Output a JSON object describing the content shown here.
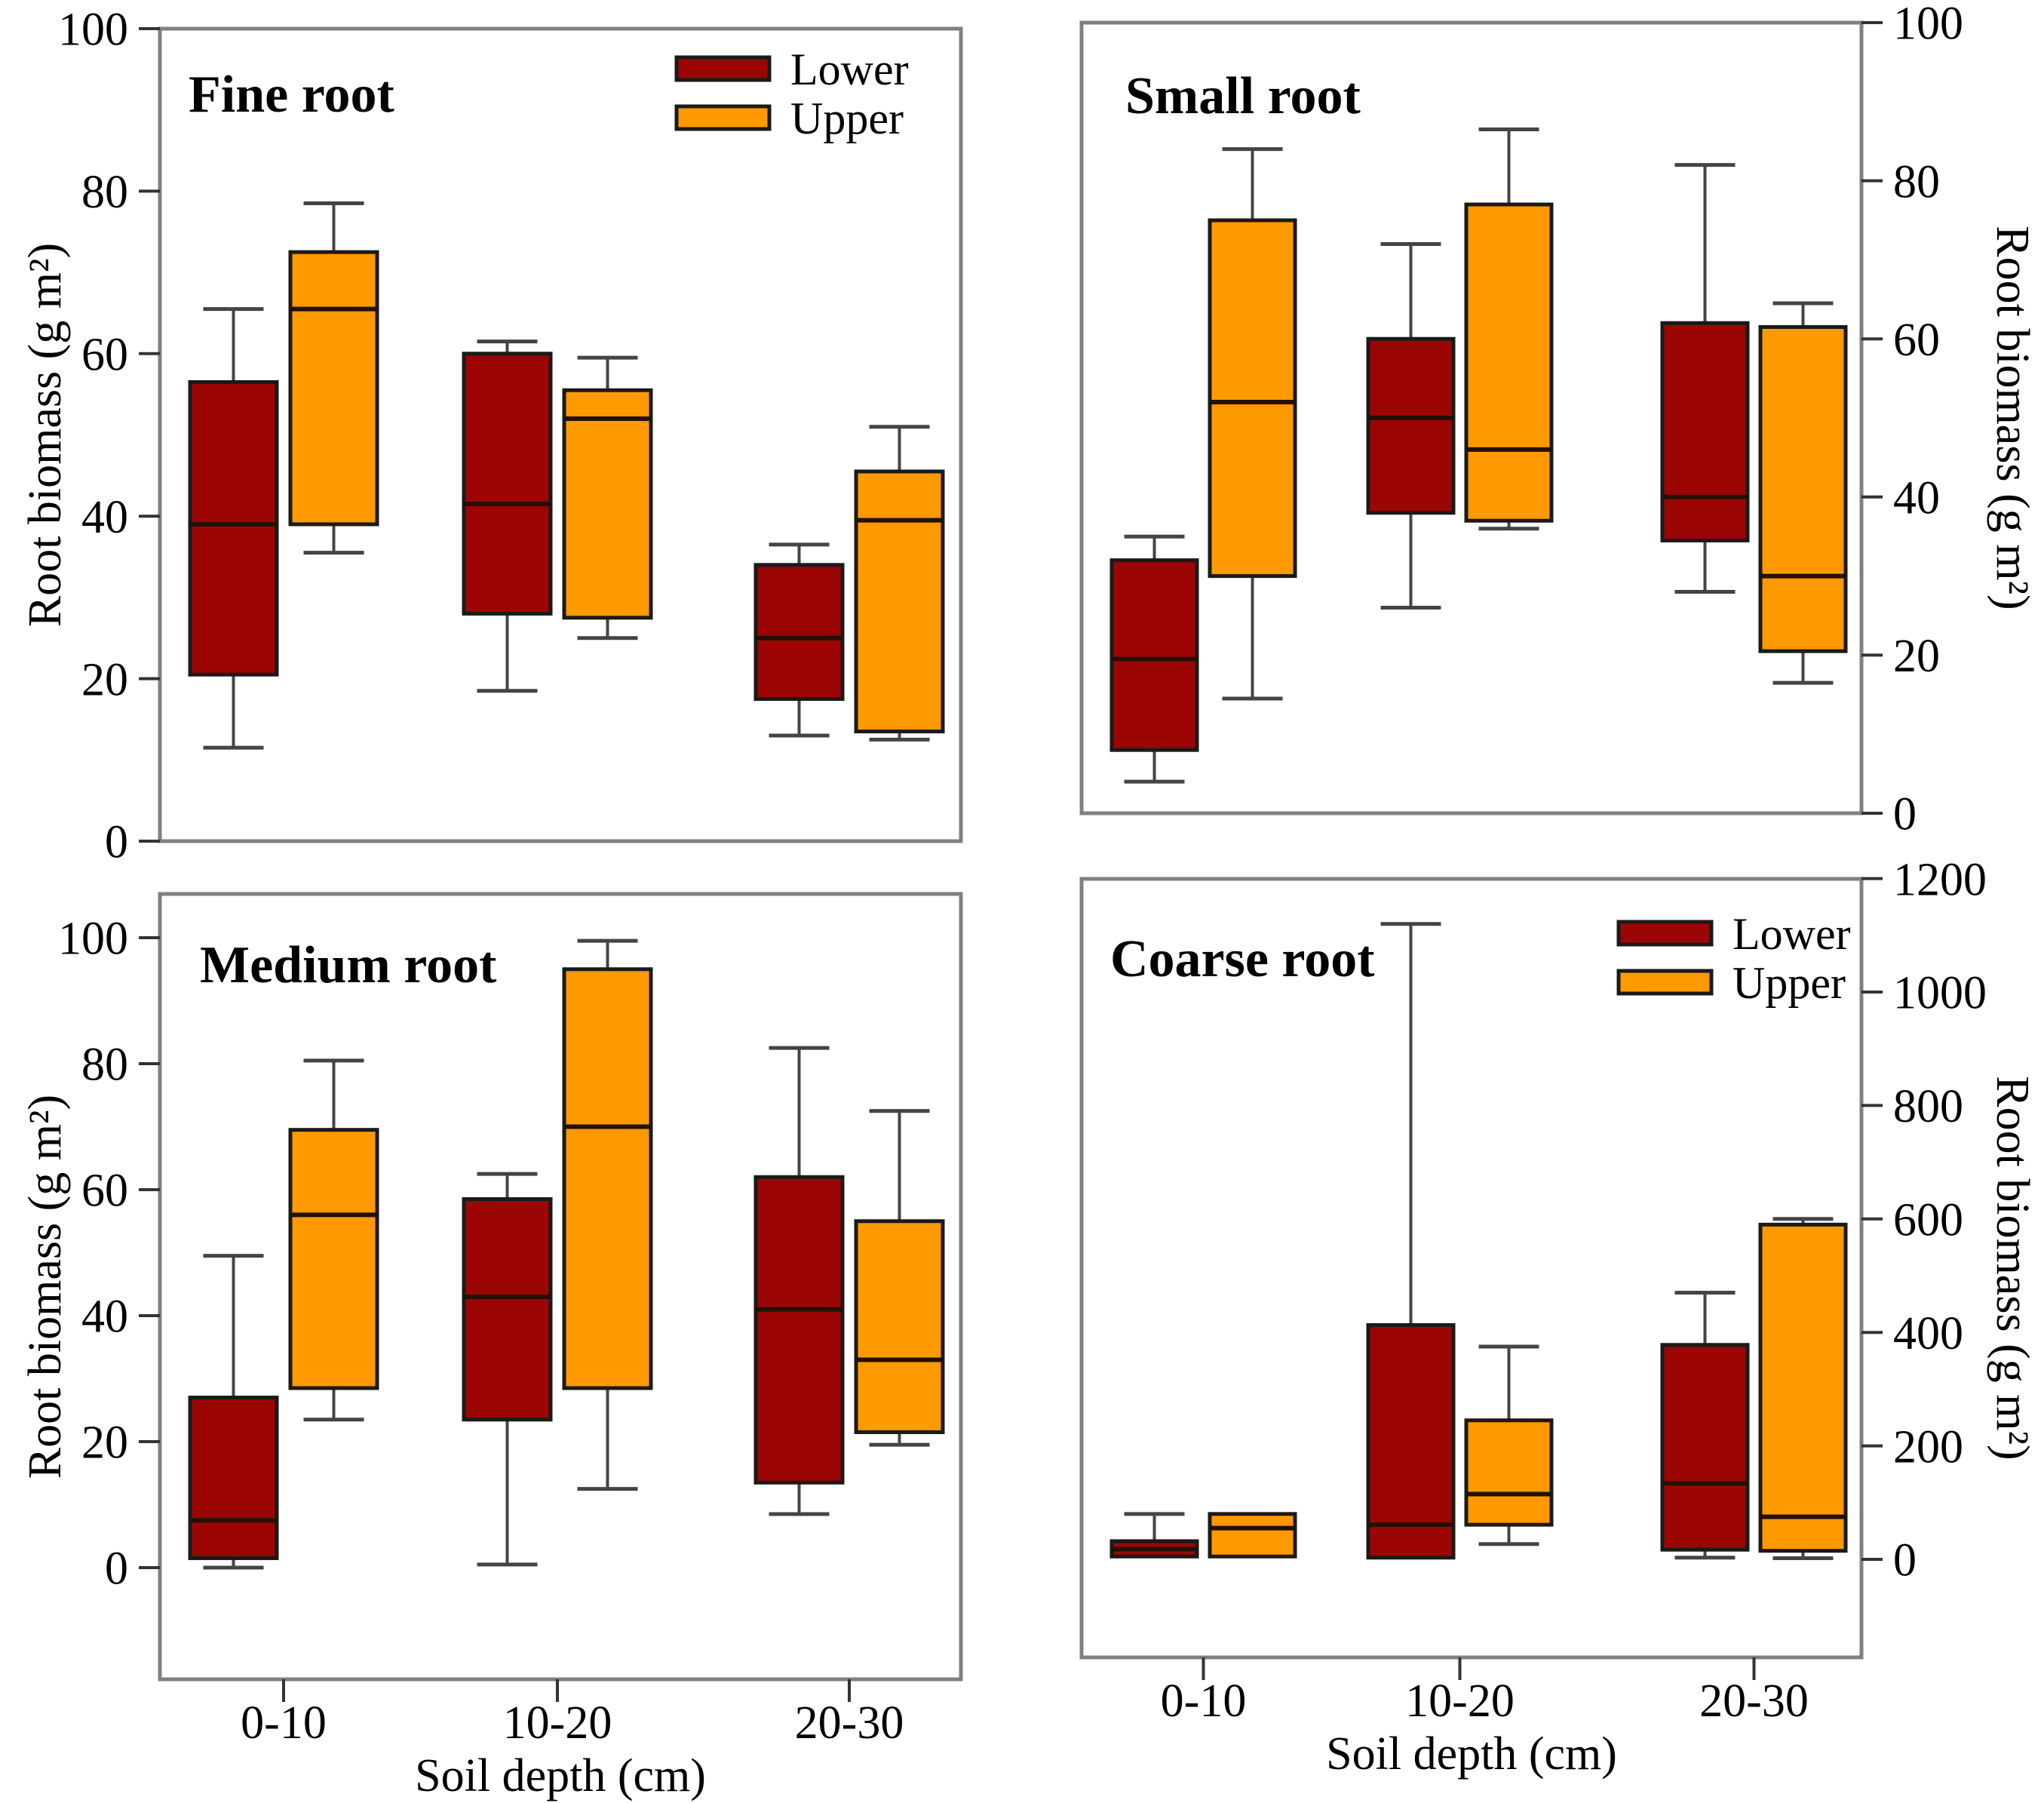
{
  "figure": {
    "title": "Root biomass box plots by soil depth",
    "xlabel": "Soil depth (cm)",
    "ylabel": "Root biomass (g m²)",
    "legend_labels": [
      "Lower",
      "Upper"
    ],
    "colors": {
      "lower": "#9B0604",
      "upper": "#FF9900",
      "frame": "#808080",
      "box_border": "#1a1a1a",
      "whisker": "#444444"
    }
  },
  "chart_data": [
    {
      "type": "box",
      "title": "Fine root",
      "ylabel": "Root biomass (g m²)",
      "xlabel": null,
      "axis_side": "left",
      "ylim": [
        0,
        100
      ],
      "yticks": [
        0,
        20,
        40,
        60,
        80,
        100
      ],
      "categories": [
        "0-10",
        "10-20",
        "20-30"
      ],
      "legend": true,
      "legend_position": "top-right",
      "series": [
        {
          "name": "Lower",
          "color": "#9B0604",
          "boxes": [
            {
              "low": 11.5,
              "q1": 20.5,
              "median": 39,
              "q3": 56.5,
              "high": 65.5
            },
            {
              "low": 18.5,
              "q1": 28,
              "median": 41.5,
              "q3": 60,
              "high": 61.5
            },
            {
              "low": 13,
              "q1": 17.5,
              "median": 25,
              "q3": 34,
              "high": 36.5
            }
          ]
        },
        {
          "name": "Upper",
          "color": "#FF9900",
          "boxes": [
            {
              "low": 35.5,
              "q1": 39,
              "median": 65.5,
              "q3": 72.5,
              "high": 78.5
            },
            {
              "low": 25,
              "q1": 27.5,
              "median": 52,
              "q3": 55.5,
              "high": 59.5
            },
            {
              "low": 12.5,
              "q1": 13.5,
              "median": 39.5,
              "q3": 45.5,
              "high": 51
            }
          ]
        }
      ]
    },
    {
      "type": "box",
      "title": "Small root",
      "ylabel": "Root biomass (g m²)",
      "xlabel": null,
      "axis_side": "right",
      "ylim": [
        0,
        100
      ],
      "yticks": [
        0,
        20,
        40,
        60,
        80,
        100
      ],
      "categories": [
        "0-10",
        "10-20",
        "20-30"
      ],
      "legend": false,
      "series": [
        {
          "name": "Lower",
          "color": "#9B0604",
          "boxes": [
            {
              "low": 4,
              "q1": 8,
              "median": 19.5,
              "q3": 32,
              "high": 35
            },
            {
              "low": 26,
              "q1": 38,
              "median": 50,
              "q3": 60,
              "high": 72
            },
            {
              "low": 28,
              "q1": 34.5,
              "median": 40,
              "q3": 62,
              "high": 82
            }
          ]
        },
        {
          "name": "Upper",
          "color": "#FF9900",
          "boxes": [
            {
              "low": 14.5,
              "q1": 30,
              "median": 52,
              "q3": 75,
              "high": 84
            },
            {
              "low": 36,
              "q1": 37,
              "median": 46,
              "q3": 77,
              "high": 86.5
            },
            {
              "low": 16.5,
              "q1": 20.5,
              "median": 30,
              "q3": 61.5,
              "high": 64.5
            }
          ]
        }
      ]
    },
    {
      "type": "box",
      "title": "Medium root",
      "ylabel": "Root biomass (g m²)",
      "xlabel": "Soil depth (cm)",
      "axis_side": "left",
      "ylim": [
        0,
        100
      ],
      "yticks": [
        0,
        20,
        40,
        60,
        80,
        100
      ],
      "categories": [
        "0-10",
        "10-20",
        "20-30"
      ],
      "legend": false,
      "series": [
        {
          "name": "Lower",
          "color": "#9B0604",
          "boxes": [
            {
              "low": 0,
              "q1": 1.5,
              "median": 7.5,
              "q3": 27,
              "high": 49.5
            },
            {
              "low": 0.5,
              "q1": 23.5,
              "median": 43,
              "q3": 58.5,
              "high": 62.5
            },
            {
              "low": 8.5,
              "q1": 13.5,
              "median": 41,
              "q3": 62,
              "high": 82.5
            }
          ]
        },
        {
          "name": "Upper",
          "color": "#FF9900",
          "boxes": [
            {
              "low": 23.5,
              "q1": 28.5,
              "median": 56,
              "q3": 69.5,
              "high": 80.5
            },
            {
              "low": 12.5,
              "q1": 28.5,
              "median": 70,
              "q3": 95,
              "high": 99.5
            },
            {
              "low": 19.5,
              "q1": 21.5,
              "median": 33,
              "q3": 55,
              "high": 72.5
            }
          ]
        }
      ]
    },
    {
      "type": "box",
      "title": "Coarse root",
      "ylabel": "Root biomass (g m²)",
      "xlabel": "Soil depth (cm)",
      "axis_side": "right",
      "ylim": [
        0,
        1200
      ],
      "yticks": [
        0,
        200,
        400,
        600,
        800,
        1000,
        1200
      ],
      "categories": [
        "0-10",
        "10-20",
        "20-30"
      ],
      "legend": true,
      "legend_position": "top-right",
      "series": [
        {
          "name": "Lower",
          "color": "#9B0604",
          "boxes": [
            {
              "low": null,
              "q1": 5,
              "median": 18,
              "q3": 32,
              "high": 80
            },
            {
              "low": null,
              "q1": 3,
              "median": 61,
              "q3": 413,
              "high": 1120
            },
            {
              "low": 3,
              "q1": 17,
              "median": 134,
              "q3": 378,
              "high": 470
            }
          ]
        },
        {
          "name": "Upper",
          "color": "#FF9900",
          "boxes": [
            {
              "low": null,
              "q1": 5,
              "median": 55,
              "q3": 80,
              "high": null
            },
            {
              "low": 27,
              "q1": 61,
              "median": 115,
              "q3": 245,
              "high": 375
            },
            {
              "low": 2,
              "q1": 15,
              "median": 75,
              "q3": 590,
              "high": 600
            }
          ]
        }
      ]
    }
  ]
}
